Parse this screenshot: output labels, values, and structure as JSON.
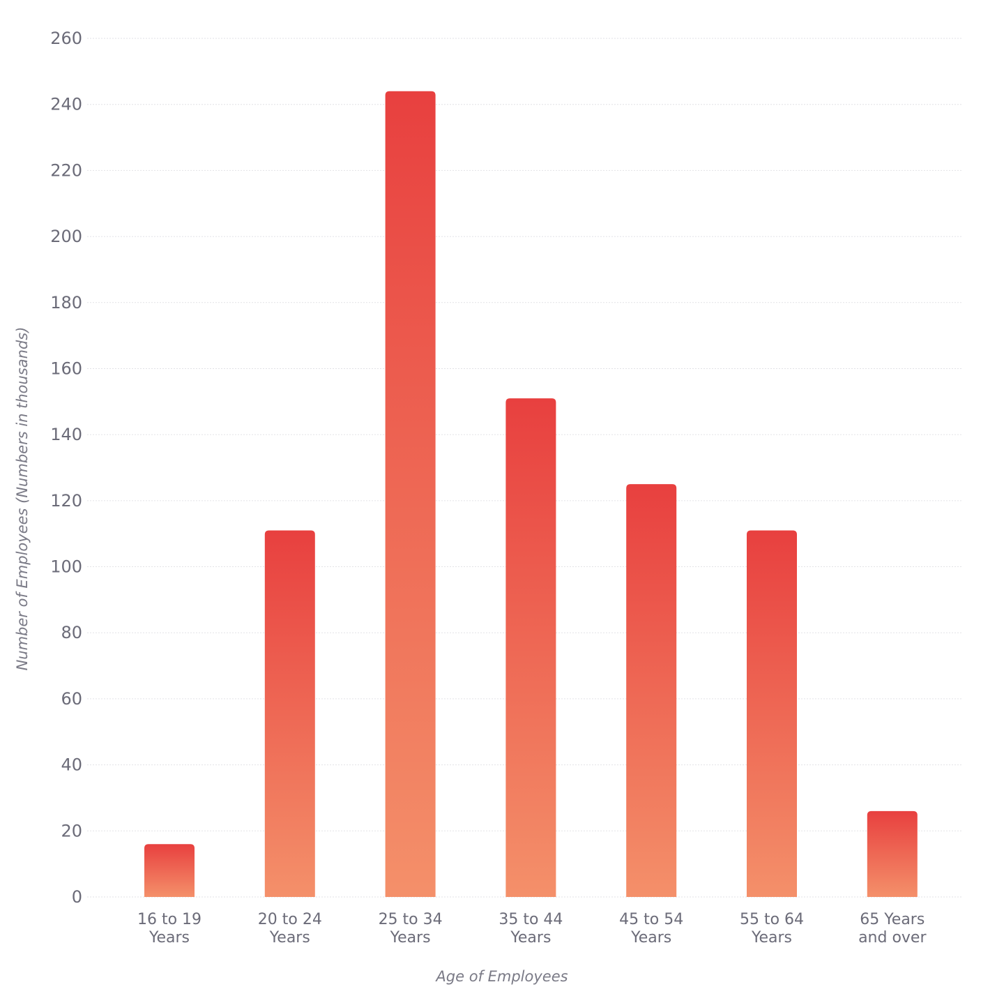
{
  "chart_data": {
    "type": "bar",
    "title": "",
    "xlabel": "Age of Employees",
    "ylabel": "Number of Employees (Numbers in thousands)",
    "ylim": [
      0,
      260
    ],
    "yticks": [
      0,
      20,
      40,
      60,
      80,
      100,
      120,
      140,
      160,
      180,
      200,
      220,
      240,
      260
    ],
    "grid": true,
    "categories": [
      [
        "16 to 19",
        "Years"
      ],
      [
        "20 to 24",
        "Years"
      ],
      [
        "25 to 34",
        "Years"
      ],
      [
        "35 to 44",
        "Years"
      ],
      [
        "45 to 54",
        "Years"
      ],
      [
        "55 to 64",
        "Years"
      ],
      [
        "65 Years",
        "and over"
      ]
    ],
    "values": [
      16,
      111,
      244,
      151,
      125,
      111,
      26
    ],
    "colors": {
      "bar_top": "#e8403f",
      "bar_bottom": "#f4906a",
      "grid": "#e2e2e6",
      "text": "#6b6b78"
    }
  }
}
